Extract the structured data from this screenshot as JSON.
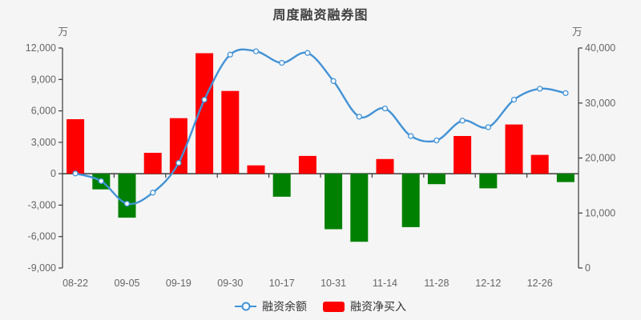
{
  "title": "周度融资融券图",
  "axes": {
    "left": {
      "unit": "万",
      "tick_labels": [
        "12,000",
        "9,000",
        "6,000",
        "3,000",
        "0",
        "-3,000",
        "-6,000",
        "-9,000"
      ],
      "tick_values": [
        12000,
        9000,
        6000,
        3000,
        0,
        -3000,
        -6000,
        -9000
      ]
    },
    "right": {
      "unit": "万",
      "tick_labels": [
        "40,000",
        "30,000",
        "20,000",
        "10,000",
        "0"
      ],
      "tick_values": [
        40000,
        30000,
        20000,
        10000,
        0
      ]
    }
  },
  "legend": {
    "items": [
      {
        "label": "融资余额",
        "marker": "line-circle",
        "color": "#4292d6"
      },
      {
        "label": "融资净买入",
        "marker": "rect",
        "color": "#ff0000"
      }
    ]
  },
  "chart_data": {
    "type": "combo",
    "title": "周度融资融券图",
    "categories": [
      "08-22",
      "",
      "09-05",
      "",
      "09-19",
      "",
      "09-30",
      "",
      "10-17",
      "",
      "10-31",
      "",
      "11-14",
      "",
      "11-28",
      "",
      "12-12",
      "",
      "12-26",
      ""
    ],
    "series": [
      {
        "name": "融资净买入",
        "type": "bar",
        "axis": "left",
        "positive_color": "#ff0000",
        "negative_color": "#008000",
        "values": [
          5200,
          -1500,
          -4200,
          2000,
          5300,
          11500,
          7900,
          800,
          -2200,
          1700,
          -5300,
          -6500,
          1400,
          -5100,
          -1000,
          3600,
          -1400,
          4700,
          1800,
          -800
        ]
      },
      {
        "name": "融资余额",
        "type": "line",
        "axis": "right",
        "color": "#4292d6",
        "smooth": true,
        "marker": "open-circle",
        "values": [
          17200,
          15800,
          11700,
          13700,
          19100,
          30600,
          38800,
          39400,
          37300,
          39100,
          34000,
          27500,
          29000,
          24000,
          23200,
          26800,
          25600,
          30600,
          32600,
          31800
        ]
      }
    ],
    "left_ylim": [
      -9000,
      12000
    ],
    "right_ylim": [
      0,
      40000
    ],
    "grid": false,
    "legend_position": "bottom"
  },
  "colors": {
    "background": "#f5f5f5",
    "axis_line": "#3a3a3a",
    "tick_text": "#666666",
    "title_text": "#404040",
    "legend_text": "#333333",
    "bar_positive": "#ff0000",
    "bar_negative": "#008000",
    "line": "#4292d6",
    "marker_fill": "#ffffff"
  }
}
